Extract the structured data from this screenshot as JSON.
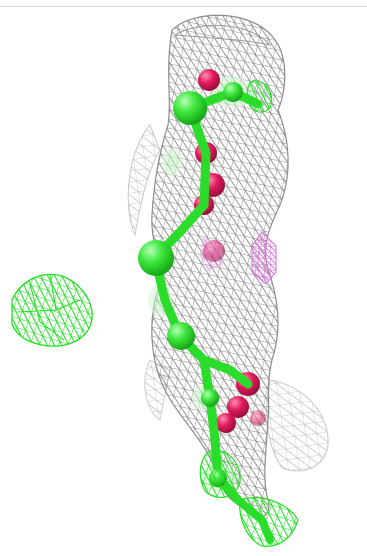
{
  "viewer": {
    "background": "#ffffff",
    "density_mesh_color": "#8c8c8c",
    "density_mesh_light_color": "#c8c8c8",
    "ligand_color": "#2bdc2b",
    "ligand_mesh_color": "#29e629",
    "oxygen_color": "#e0185a",
    "side_mesh_color": "#d67ad6",
    "icons": [
      "electron-density-mesh",
      "ligand-stick-model",
      "isolated-mesh-blob"
    ]
  }
}
